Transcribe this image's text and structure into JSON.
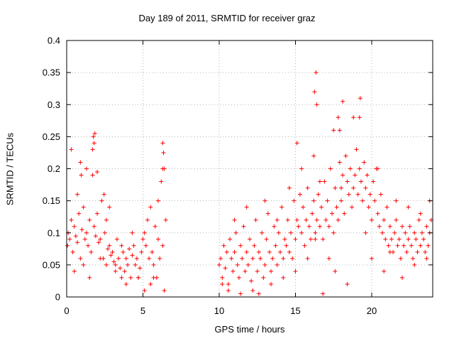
{
  "chart_data": {
    "type": "scatter",
    "title": "Day 189 of 2011, SRMTID for receiver graz",
    "xlabel": "GPS time / hours",
    "ylabel": "SRMTID / TECUs",
    "xlim": [
      0,
      24
    ],
    "ylim": [
      0,
      0.4
    ],
    "xticks": [
      0,
      5,
      10,
      15,
      20
    ],
    "xtick_labels": [
      "0",
      "5",
      "10",
      "15",
      "20"
    ],
    "yticks": [
      0,
      0.05,
      0.1,
      0.15,
      0.2,
      0.25,
      0.3,
      0.35,
      0.4
    ],
    "ytick_labels": [
      "0",
      "0.05",
      "0.1",
      "0.15",
      "0.2",
      "0.25",
      "0.3",
      "0.35",
      "0.4"
    ],
    "grid": true,
    "marker": "+",
    "series": [
      {
        "name": "SRMTID",
        "color": "#ff0000",
        "x": [
          0.05,
          0.1,
          0.2,
          0.3,
          0.4,
          0.5,
          0.6,
          0.7,
          0.8,
          0.9,
          1.0,
          1.1,
          1.2,
          1.3,
          1.4,
          1.5,
          1.6,
          1.7,
          1.8,
          1.9,
          2.0,
          2.1,
          2.2,
          2.3,
          2.4,
          2.5,
          2.6,
          2.7,
          2.8,
          2.9,
          3.0,
          3.1,
          3.2,
          3.3,
          3.4,
          3.5,
          3.6,
          3.7,
          3.8,
          3.9,
          4.0,
          4.1,
          4.2,
          4.3,
          4.4,
          4.5,
          4.6,
          4.7,
          4.8,
          4.9,
          5.0,
          5.1,
          5.2,
          5.3,
          5.4,
          5.5,
          5.6,
          5.7,
          5.8,
          5.9,
          6.0,
          6.1,
          6.2,
          6.3,
          6.4,
          6.5,
          1.75,
          1.8,
          1.7,
          1.85,
          6.3,
          6.35,
          6.3,
          2.0,
          2.45,
          0.9,
          0.95,
          10.0,
          10.1,
          10.2,
          10.3,
          10.4,
          10.5,
          10.6,
          10.7,
          10.8,
          10.9,
          11.0,
          11.1,
          11.2,
          11.3,
          11.4,
          11.5,
          11.6,
          11.7,
          11.8,
          11.9,
          12.0,
          12.1,
          12.2,
          12.3,
          12.4,
          12.5,
          12.6,
          12.7,
          12.8,
          12.9,
          13.0,
          13.1,
          13.2,
          13.3,
          13.4,
          13.5,
          13.6,
          13.7,
          13.8,
          13.9,
          14.0,
          14.1,
          14.2,
          14.3,
          14.4,
          14.5,
          14.6,
          14.7,
          14.8,
          14.9,
          15.0,
          15.1,
          15.2,
          15.3,
          15.4,
          15.5,
          15.6,
          15.7,
          15.8,
          15.9,
          16.0,
          16.1,
          16.2,
          16.3,
          16.4,
          16.5,
          16.6,
          16.7,
          16.8,
          16.9,
          17.0,
          17.1,
          17.2,
          17.3,
          17.4,
          17.5,
          17.6,
          17.7,
          17.8,
          17.9,
          18.0,
          18.1,
          18.2,
          18.3,
          18.4,
          18.5,
          18.6,
          18.7,
          18.8,
          18.9,
          19.0,
          19.1,
          19.2,
          19.3,
          19.4,
          19.5,
          19.6,
          19.7,
          19.8,
          19.9,
          20.0,
          20.1,
          20.2,
          20.3,
          20.4,
          20.5,
          20.6,
          20.7,
          20.8,
          20.9,
          21.0,
          21.1,
          21.2,
          21.3,
          21.4,
          21.5,
          21.6,
          21.7,
          21.8,
          21.9,
          22.0,
          22.1,
          22.2,
          22.3,
          22.4,
          22.5,
          22.6,
          22.7,
          22.8,
          22.9,
          23.0,
          23.1,
          23.2,
          23.3,
          23.4,
          23.5,
          23.6,
          23.7,
          23.8,
          23.9,
          16.3,
          16.35,
          16.25,
          16.4,
          19.2,
          19.25,
          18.1,
          17.9,
          17.8,
          15.1,
          16.6,
          17.5,
          0.3,
          0.5,
          0.7,
          1.1,
          1.3,
          1.5,
          2.2,
          2.6,
          2.8,
          3.2,
          3.6,
          3.9,
          4.3,
          4.7,
          5.1,
          5.5,
          5.7,
          6.0,
          6.4,
          10.2,
          10.6,
          11.0,
          11.4,
          11.8,
          12.2,
          12.6,
          13.0,
          13.4,
          13.8,
          14.2,
          14.6,
          15.0,
          15.4,
          15.8,
          16.2,
          16.8,
          17.2,
          17.6,
          18.0,
          18.4,
          18.8,
          19.6,
          20.0,
          20.4,
          20.8,
          21.2,
          21.6,
          22.0,
          22.4,
          22.8,
          23.2,
          23.6,
          23.8
        ],
        "y": [
          0.08,
          0.1,
          0.09,
          0.12,
          0.07,
          0.11,
          0.095,
          0.085,
          0.13,
          0.06,
          0.105,
          0.14,
          0.09,
          0.1,
          0.08,
          0.12,
          0.07,
          0.19,
          0.11,
          0.095,
          0.13,
          0.085,
          0.09,
          0.15,
          0.06,
          0.1,
          0.12,
          0.075,
          0.08,
          0.065,
          0.07,
          0.055,
          0.05,
          0.09,
          0.06,
          0.045,
          0.08,
          0.07,
          0.04,
          0.06,
          0.05,
          0.075,
          0.03,
          0.065,
          0.08,
          0.05,
          0.06,
          0.03,
          0.045,
          0.07,
          0.09,
          0.1,
          0.08,
          0.12,
          0.06,
          0.14,
          0.07,
          0.05,
          0.11,
          0.03,
          0.09,
          0.06,
          0.18,
          0.08,
          0.2,
          0.12,
          0.25,
          0.24,
          0.23,
          0.255,
          0.24,
          0.225,
          0.2,
          0.195,
          0.16,
          0.21,
          0.19,
          0.05,
          0.06,
          0.03,
          0.08,
          0.045,
          0.07,
          0.02,
          0.09,
          0.06,
          0.04,
          0.07,
          0.1,
          0.05,
          0.03,
          0.08,
          0.06,
          0.11,
          0.04,
          0.07,
          0.05,
          0.09,
          0.025,
          0.06,
          0.08,
          0.12,
          0.04,
          0.07,
          0.06,
          0.1,
          0.03,
          0.05,
          0.09,
          0.13,
          0.07,
          0.04,
          0.06,
          0.11,
          0.08,
          0.05,
          0.1,
          0.07,
          0.14,
          0.06,
          0.09,
          0.08,
          0.12,
          0.07,
          0.1,
          0.06,
          0.15,
          0.09,
          0.12,
          0.11,
          0.16,
          0.1,
          0.14,
          0.08,
          0.12,
          0.17,
          0.11,
          0.09,
          0.13,
          0.15,
          0.1,
          0.12,
          0.16,
          0.11,
          0.14,
          0.09,
          0.18,
          0.12,
          0.15,
          0.11,
          0.2,
          0.13,
          0.1,
          0.17,
          0.14,
          0.12,
          0.21,
          0.15,
          0.19,
          0.13,
          0.22,
          0.18,
          0.16,
          0.2,
          0.14,
          0.17,
          0.19,
          0.23,
          0.16,
          0.2,
          0.18,
          0.15,
          0.21,
          0.17,
          0.19,
          0.14,
          0.16,
          0.12,
          0.18,
          0.15,
          0.2,
          0.13,
          0.11,
          0.16,
          0.1,
          0.12,
          0.09,
          0.14,
          0.08,
          0.11,
          0.09,
          0.07,
          0.1,
          0.12,
          0.08,
          0.09,
          0.06,
          0.11,
          0.08,
          0.1,
          0.07,
          0.09,
          0.11,
          0.08,
          0.06,
          0.1,
          0.09,
          0.07,
          0.12,
          0.08,
          0.1,
          0.09,
          0.07,
          0.11,
          0.08,
          0.1,
          0.12,
          0.09,
          0.35,
          0.32,
          0.3,
          0.28,
          0.31,
          0.305,
          0.26,
          0.28,
          0.24,
          0.18,
          0.26,
          0.23,
          0.04,
          0.16,
          0.05,
          0.2,
          0.03,
          0.06,
          0.05,
          0.14,
          0.04,
          0.03,
          0.02,
          0.1,
          0.03,
          0.01,
          0.02,
          0.03,
          0.15,
          0.01,
          0.02,
          0.01,
          0.12,
          0.005,
          0.14,
          0.01,
          0.005,
          0.15,
          0.02,
          0.12,
          0.03,
          0.17,
          0.04,
          0.2,
          0.06,
          0.22,
          0.005,
          0.06,
          0.04,
          0.17,
          0.02,
          0.28,
          0.1,
          0.06,
          0.2,
          0.04,
          0.07,
          0.15,
          0.03,
          0.14,
          0.05,
          0.13,
          0.06,
          0.15
        ]
      }
    ]
  }
}
